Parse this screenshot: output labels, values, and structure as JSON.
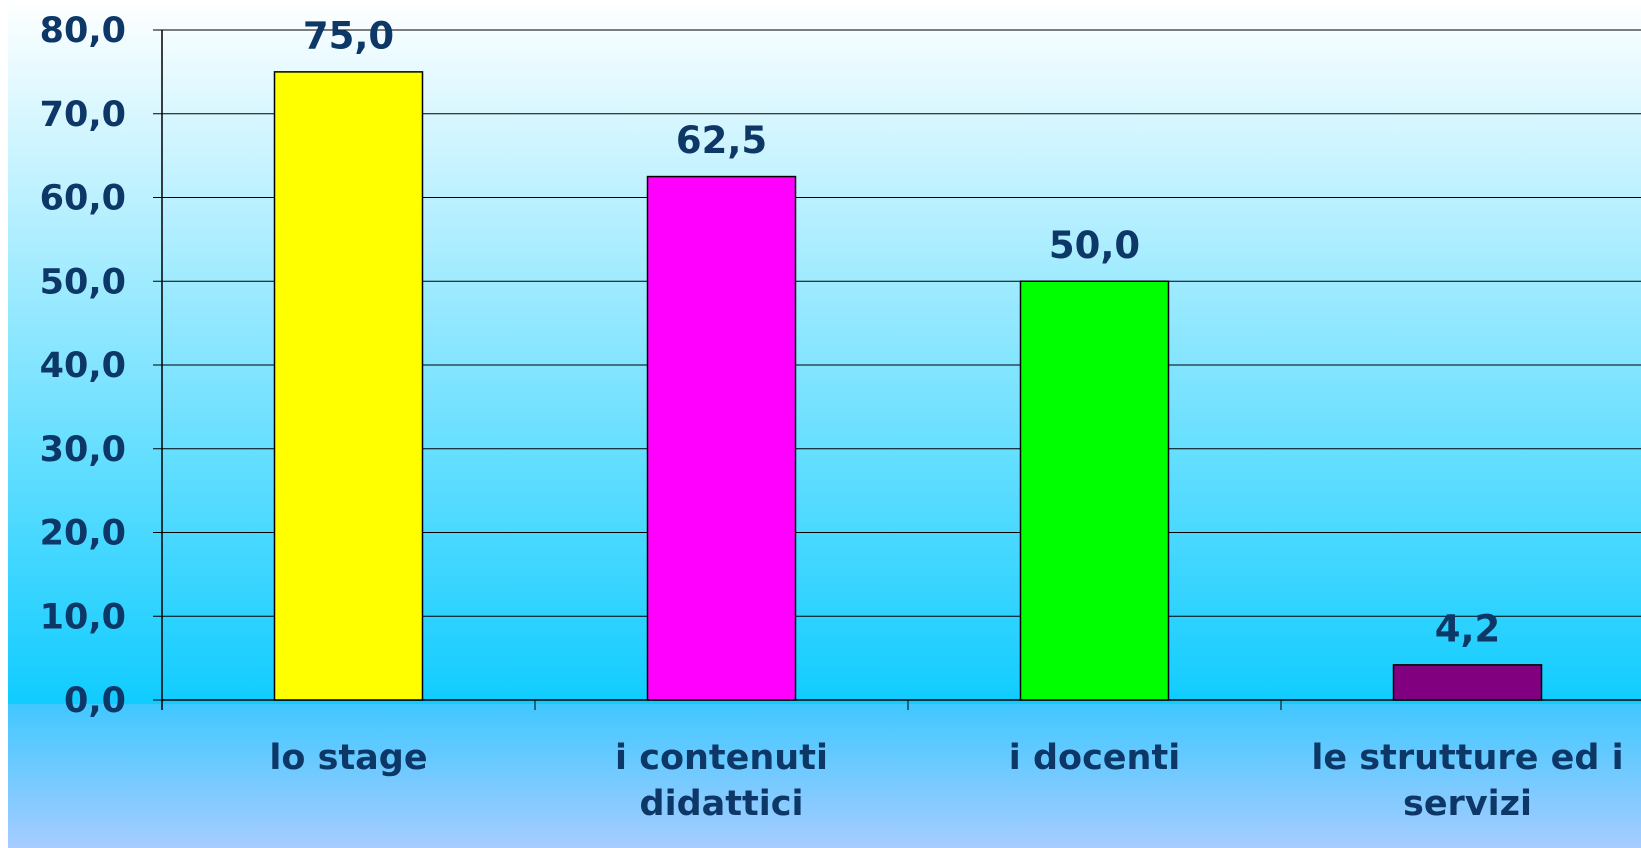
{
  "chart_data": {
    "type": "bar",
    "categories": [
      "lo stage",
      "i contenuti didattici",
      "i docenti",
      "le strutture ed i servizi"
    ],
    "values": [
      75.0,
      62.5,
      50.0,
      4.2
    ],
    "value_labels": [
      "75,0",
      "62,5",
      "50,0",
      "4,2"
    ],
    "colors": [
      "#ffff00",
      "#ff00ff",
      "#00ff00",
      "#800080"
    ],
    "ylim": [
      0,
      80
    ],
    "yticks": [
      {
        "value": 0,
        "label": "0,0"
      },
      {
        "value": 10,
        "label": "10,0"
      },
      {
        "value": 20,
        "label": "20,0"
      },
      {
        "value": 30,
        "label": "30,0"
      },
      {
        "value": 40,
        "label": "40,0"
      },
      {
        "value": 50,
        "label": "50,0"
      },
      {
        "value": 60,
        "label": "60,0"
      },
      {
        "value": 70,
        "label": "70,0"
      },
      {
        "value": 80,
        "label": "80,0"
      }
    ],
    "grid": true
  }
}
